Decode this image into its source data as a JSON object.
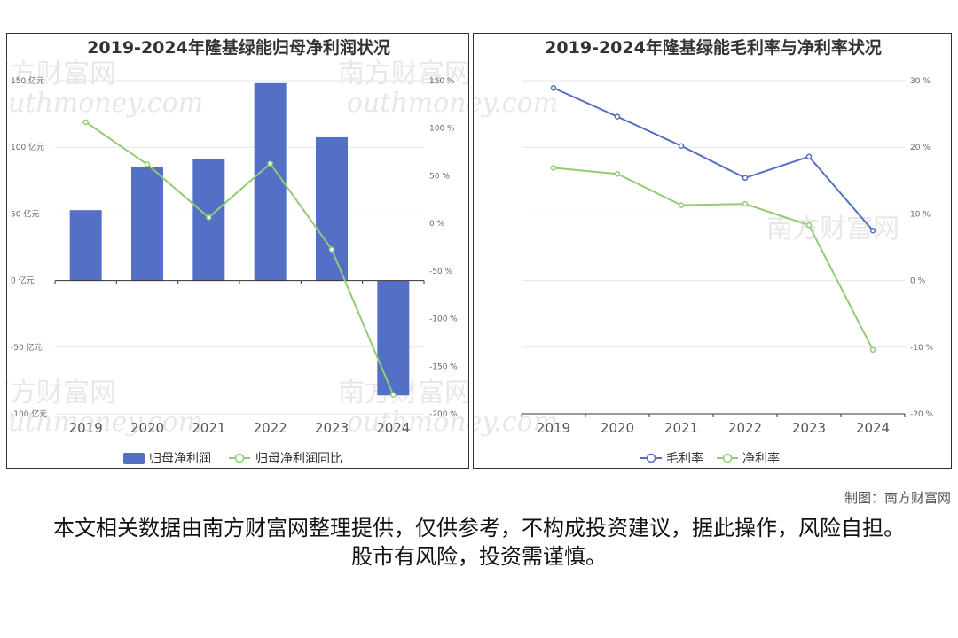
{
  "chart_data": [
    {
      "type": "bar",
      "title": "2019-2024年隆基绿能归母净利润状况",
      "categories": [
        "2019",
        "2020",
        "2021",
        "2022",
        "2023",
        "2024"
      ],
      "series": [
        {
          "name": "归母净利润",
          "type": "bar",
          "axis": "left",
          "unit": "亿元",
          "values": [
            52.8,
            85.5,
            90.9,
            148.1,
            107.5,
            -86.2
          ]
        },
        {
          "name": "归母净利润同比",
          "type": "line",
          "axis": "right",
          "unit": "%",
          "values": [
            106.4,
            62.0,
            6.3,
            62.9,
            -27.4,
            -180.2
          ]
        }
      ],
      "left_axis": {
        "ylim": [
          -100,
          150
        ],
        "ticks": [
          "150 亿元",
          "100 亿元",
          "50 亿元",
          "0 亿元",
          "-50 亿元",
          "-100 亿元"
        ]
      },
      "right_axis": {
        "ylim": [
          -200,
          150
        ],
        "ticks": [
          "150 %",
          "100 %",
          "50 %",
          "0 %",
          "-50 %",
          "-100 %",
          "-150 %",
          "-200 %"
        ]
      },
      "grid": true,
      "legend": "bottom",
      "colors": {
        "bar": "#5470c6",
        "line": "#91cc75"
      }
    },
    {
      "type": "line",
      "title": "2019-2024年隆基绿能毛利率与净利率状况",
      "categories": [
        "2019",
        "2020",
        "2021",
        "2022",
        "2023",
        "2024"
      ],
      "series": [
        {
          "name": "毛利率",
          "values": [
            28.9,
            24.6,
            20.2,
            15.4,
            18.6,
            7.5
          ]
        },
        {
          "name": "净利率",
          "values": [
            16.9,
            16.0,
            11.3,
            11.5,
            8.3,
            -10.4
          ]
        }
      ],
      "right_axis": {
        "ylim": [
          -20,
          30
        ],
        "ticks": [
          "30 %",
          "20 %",
          "10 %",
          "0 %",
          "-10 %",
          "-20 %"
        ]
      },
      "grid": true,
      "legend": "bottom",
      "colors": {
        "gross": "#5470c6",
        "net": "#91cc75"
      }
    }
  ],
  "watermark": {
    "cn": "南方财富网",
    "en": "outhmoney.com"
  },
  "credit": "制图：南方财富网",
  "disclaimer": "本文相关数据由南方财富网整理提供，仅供参考，不构成投资建议，据此操作，风险自担。股市有风险，投资需谨慎。"
}
